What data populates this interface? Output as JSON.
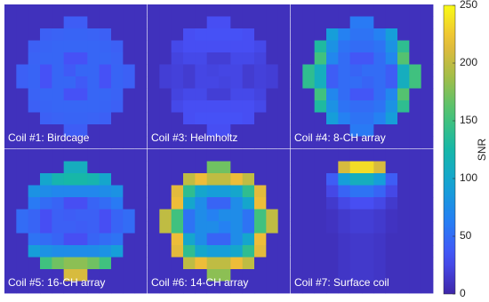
{
  "chart_data": {
    "type": "heatmap",
    "colorbar": {
      "label": "SNR",
      "lim": [
        0,
        250
      ],
      "ticks": [
        0,
        50,
        100,
        150,
        200,
        250
      ]
    },
    "panels": [
      {
        "title": "Coil #1: Birdcage",
        "values": [
          [
            8,
            8,
            8,
            8,
            8,
            8,
            8,
            8,
            8,
            8,
            8,
            8
          ],
          [
            8,
            8,
            8,
            8,
            8,
            40,
            40,
            8,
            8,
            8,
            8,
            8
          ],
          [
            8,
            8,
            8,
            42,
            44,
            45,
            45,
            44,
            42,
            8,
            8,
            8
          ],
          [
            8,
            8,
            42,
            45,
            46,
            46,
            46,
            46,
            45,
            42,
            8,
            8
          ],
          [
            8,
            8,
            44,
            46,
            46,
            32,
            32,
            46,
            46,
            44,
            8,
            8
          ],
          [
            8,
            42,
            45,
            32,
            46,
            38,
            46,
            46,
            32,
            45,
            42,
            8
          ],
          [
            8,
            42,
            45,
            32,
            46,
            46,
            38,
            46,
            32,
            45,
            42,
            8
          ],
          [
            8,
            8,
            44,
            46,
            46,
            32,
            32,
            46,
            46,
            44,
            8,
            8
          ],
          [
            8,
            8,
            42,
            45,
            46,
            46,
            46,
            46,
            45,
            42,
            8,
            8
          ],
          [
            8,
            8,
            8,
            42,
            44,
            45,
            45,
            44,
            42,
            8,
            8,
            8
          ],
          [
            8,
            8,
            8,
            8,
            8,
            40,
            40,
            8,
            8,
            8,
            8,
            8
          ],
          [
            8,
            8,
            8,
            8,
            8,
            8,
            8,
            8,
            8,
            8,
            8,
            8
          ]
        ]
      },
      {
        "title": "Coil #3: Helmholtz",
        "values": [
          [
            8,
            8,
            8,
            8,
            8,
            8,
            8,
            8,
            8,
            8,
            8,
            8
          ],
          [
            8,
            8,
            8,
            8,
            8,
            30,
            30,
            8,
            8,
            8,
            8,
            8
          ],
          [
            8,
            8,
            8,
            30,
            32,
            32,
            32,
            32,
            30,
            8,
            8,
            8
          ],
          [
            8,
            8,
            26,
            30,
            30,
            30,
            30,
            30,
            30,
            26,
            8,
            8
          ],
          [
            8,
            8,
            22,
            26,
            26,
            18,
            18,
            26,
            26,
            22,
            8,
            8
          ],
          [
            8,
            18,
            20,
            16,
            24,
            22,
            24,
            24,
            16,
            20,
            18,
            8
          ],
          [
            8,
            18,
            20,
            16,
            24,
            24,
            22,
            24,
            16,
            20,
            18,
            8
          ],
          [
            8,
            8,
            22,
            26,
            26,
            18,
            18,
            26,
            26,
            22,
            8,
            8
          ],
          [
            8,
            8,
            26,
            30,
            30,
            30,
            30,
            30,
            30,
            26,
            8,
            8
          ],
          [
            8,
            8,
            8,
            30,
            32,
            32,
            32,
            32,
            30,
            8,
            8,
            8
          ],
          [
            8,
            8,
            8,
            8,
            8,
            30,
            30,
            8,
            8,
            8,
            8,
            8
          ],
          [
            8,
            8,
            8,
            8,
            8,
            8,
            8,
            8,
            8,
            8,
            8,
            8
          ]
        ]
      },
      {
        "title": "Coil #4: 8-CH array",
        "values": [
          [
            8,
            8,
            8,
            8,
            8,
            8,
            8,
            8,
            8,
            8,
            8,
            8
          ],
          [
            8,
            8,
            8,
            8,
            8,
            60,
            60,
            8,
            8,
            8,
            8,
            8
          ],
          [
            8,
            8,
            8,
            90,
            65,
            55,
            55,
            65,
            90,
            8,
            8,
            8
          ],
          [
            8,
            8,
            130,
            80,
            55,
            50,
            50,
            55,
            80,
            140,
            8,
            8
          ],
          [
            8,
            8,
            150,
            70,
            50,
            35,
            35,
            50,
            70,
            160,
            8,
            8
          ],
          [
            8,
            140,
            110,
            40,
            50,
            45,
            50,
            50,
            40,
            110,
            150,
            8
          ],
          [
            8,
            140,
            110,
            40,
            50,
            50,
            45,
            50,
            40,
            110,
            150,
            8
          ],
          [
            8,
            8,
            150,
            70,
            50,
            35,
            35,
            50,
            70,
            160,
            8,
            8
          ],
          [
            8,
            8,
            130,
            80,
            55,
            50,
            50,
            55,
            80,
            140,
            8,
            8
          ],
          [
            8,
            8,
            8,
            90,
            65,
            55,
            55,
            65,
            90,
            8,
            8,
            8
          ],
          [
            8,
            8,
            8,
            8,
            8,
            60,
            60,
            8,
            8,
            8,
            8,
            8
          ],
          [
            8,
            8,
            8,
            8,
            8,
            8,
            8,
            8,
            8,
            8,
            8,
            8
          ]
        ]
      },
      {
        "title": "Coil #5: 16-CH array",
        "values": [
          [
            8,
            8,
            8,
            8,
            8,
            8,
            8,
            8,
            8,
            8,
            8,
            8
          ],
          [
            8,
            8,
            8,
            8,
            8,
            110,
            110,
            8,
            8,
            8,
            8,
            8
          ],
          [
            8,
            8,
            8,
            100,
            120,
            125,
            125,
            120,
            100,
            8,
            8,
            8
          ],
          [
            8,
            8,
            80,
            75,
            70,
            70,
            70,
            70,
            75,
            80,
            8,
            8
          ],
          [
            8,
            8,
            60,
            50,
            45,
            30,
            30,
            45,
            50,
            60,
            8,
            8
          ],
          [
            8,
            50,
            45,
            30,
            42,
            40,
            42,
            42,
            30,
            45,
            50,
            8
          ],
          [
            8,
            50,
            45,
            30,
            42,
            42,
            40,
            42,
            30,
            45,
            50,
            8
          ],
          [
            8,
            8,
            55,
            50,
            45,
            30,
            30,
            45,
            50,
            55,
            8,
            8
          ],
          [
            8,
            8,
            90,
            80,
            75,
            75,
            75,
            75,
            80,
            90,
            8,
            8
          ],
          [
            8,
            8,
            8,
            150,
            170,
            180,
            180,
            170,
            150,
            8,
            8,
            8
          ],
          [
            8,
            8,
            8,
            8,
            8,
            210,
            210,
            8,
            8,
            8,
            8,
            8
          ],
          [
            8,
            8,
            8,
            8,
            8,
            8,
            8,
            8,
            8,
            8,
            8,
            8
          ]
        ]
      },
      {
        "title": "Coil #6: 14-CH array",
        "values": [
          [
            8,
            8,
            8,
            8,
            8,
            8,
            8,
            8,
            8,
            8,
            8,
            8
          ],
          [
            8,
            8,
            8,
            8,
            8,
            170,
            170,
            8,
            8,
            8,
            8,
            8
          ],
          [
            8,
            8,
            8,
            200,
            220,
            200,
            200,
            220,
            200,
            8,
            8,
            8
          ],
          [
            8,
            8,
            215,
            140,
            100,
            90,
            90,
            100,
            140,
            215,
            8,
            8
          ],
          [
            8,
            8,
            220,
            100,
            75,
            45,
            45,
            75,
            100,
            220,
            8,
            8
          ],
          [
            8,
            200,
            150,
            55,
            75,
            65,
            75,
            75,
            55,
            150,
            200,
            8
          ],
          [
            8,
            200,
            150,
            55,
            75,
            75,
            65,
            75,
            55,
            150,
            200,
            8
          ],
          [
            8,
            8,
            220,
            100,
            75,
            45,
            45,
            75,
            100,
            220,
            8,
            8
          ],
          [
            8,
            8,
            215,
            140,
            100,
            90,
            90,
            100,
            140,
            215,
            8,
            8
          ],
          [
            8,
            8,
            8,
            200,
            220,
            200,
            200,
            220,
            200,
            8,
            8,
            8
          ],
          [
            8,
            8,
            8,
            8,
            8,
            180,
            180,
            8,
            8,
            8,
            8,
            8
          ],
          [
            8,
            8,
            8,
            8,
            8,
            8,
            8,
            8,
            8,
            8,
            8,
            8
          ]
        ]
      },
      {
        "title": "Coil #7: Surface coil",
        "values": [
          [
            8,
            8,
            8,
            8,
            8,
            8,
            8,
            8,
            8,
            8,
            8,
            8
          ],
          [
            8,
            8,
            8,
            8,
            210,
            235,
            235,
            210,
            8,
            8,
            8,
            8
          ],
          [
            8,
            8,
            8,
            40,
            90,
            110,
            110,
            90,
            40,
            8,
            8,
            8
          ],
          [
            8,
            8,
            8,
            25,
            45,
            55,
            55,
            45,
            25,
            8,
            8,
            8
          ],
          [
            8,
            8,
            8,
            15,
            25,
            30,
            30,
            25,
            15,
            8,
            8,
            8
          ],
          [
            8,
            8,
            8,
            10,
            15,
            18,
            18,
            15,
            10,
            8,
            8,
            8
          ],
          [
            8,
            8,
            8,
            10,
            15,
            18,
            18,
            15,
            10,
            8,
            8,
            8
          ],
          [
            8,
            8,
            8,
            8,
            12,
            14,
            14,
            12,
            8,
            8,
            8,
            8
          ],
          [
            8,
            8,
            8,
            8,
            12,
            14,
            14,
            12,
            8,
            8,
            8,
            8
          ],
          [
            8,
            8,
            8,
            8,
            12,
            14,
            14,
            12,
            8,
            8,
            8,
            8
          ],
          [
            8,
            8,
            8,
            8,
            12,
            14,
            14,
            12,
            8,
            8,
            8,
            8
          ],
          [
            8,
            8,
            8,
            8,
            8,
            8,
            8,
            8,
            8,
            8,
            8,
            8
          ]
        ]
      }
    ]
  }
}
